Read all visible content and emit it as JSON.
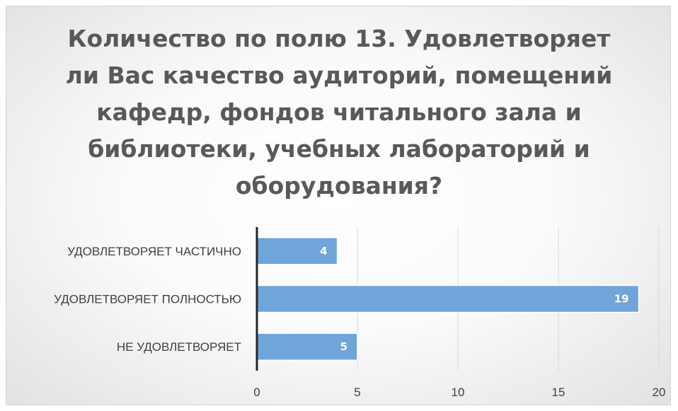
{
  "chart_data": {
    "type": "bar",
    "orientation": "horizontal",
    "title": "Количество по полю 13. Удовлетворяет ли Вас качество аудиторий, помещений кафедр, фондов читального зала и библиотеки, учебных лабораторий и оборудования?",
    "categories": [
      "УДОВЛЕТВОРЯЕТ ЧАСТИЧНО",
      "УДОВЛЕТВОРЯЕТ ПОЛНОСТЬЮ",
      "НЕ УДОВЛЕТВОРЯЕТ"
    ],
    "values": [
      4,
      19,
      5
    ],
    "data_labels": [
      "4",
      "19",
      "5"
    ],
    "xlim": [
      0,
      20
    ],
    "xticks": [
      0,
      5,
      10,
      15,
      20
    ],
    "xtick_labels": [
      "0",
      "5",
      "10",
      "15",
      "20"
    ],
    "grid": "vertical",
    "legend": "none",
    "bar_color": "#6fa5d9"
  }
}
